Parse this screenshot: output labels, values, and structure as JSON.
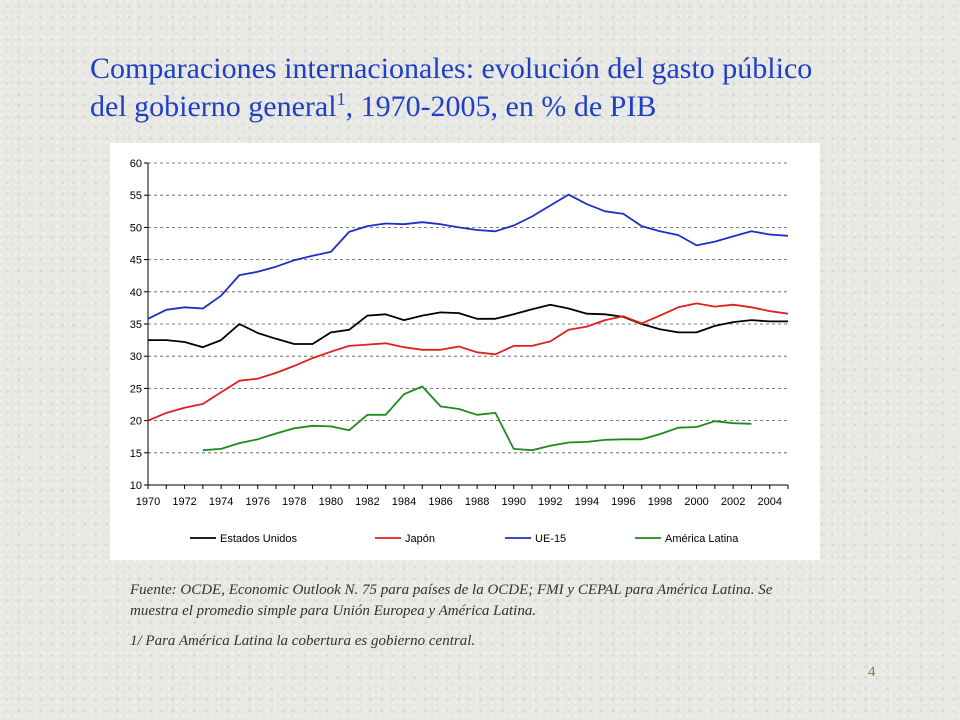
{
  "title": {
    "line1": "Comparaciones internacionales: evolución del gasto público",
    "line2_pre": "del gobierno general",
    "line2_sup": "1",
    "line2_post": ", 1970-2005, en % de PIB"
  },
  "notes": {
    "source": "Fuente: OCDE, Economic Outlook N. 75 para países de la OCDE; FMI y CEPAL para América Latina. Se muestra el promedio simple para Unión Europea y América Latina.",
    "footnote": "1/ Para América Latina la cobertura es gobierno central."
  },
  "page_number": "4",
  "chart_data": {
    "type": "line",
    "title": "",
    "xlabel": "",
    "ylabel": "",
    "xlim": [
      1970,
      2005
    ],
    "ylim": [
      10,
      60
    ],
    "y_ticks": [
      10,
      15,
      20,
      25,
      30,
      35,
      40,
      45,
      50,
      55,
      60
    ],
    "x_ticks": [
      1970,
      1972,
      1974,
      1976,
      1978,
      1980,
      1982,
      1984,
      1986,
      1988,
      1990,
      1992,
      1994,
      1996,
      1998,
      2000,
      2002,
      2004
    ],
    "grid": "horizontal dashed",
    "legend_position": "bottom",
    "series": [
      {
        "name": "Estados Unidos",
        "color": "#000000",
        "x": [
          1970,
          1971,
          1972,
          1973,
          1974,
          1975,
          1976,
          1977,
          1978,
          1979,
          1980,
          1981,
          1982,
          1983,
          1984,
          1985,
          1986,
          1987,
          1988,
          1989,
          1990,
          1991,
          1992,
          1993,
          1994,
          1995,
          1996,
          1997,
          1998,
          1999,
          2000,
          2001,
          2002,
          2003,
          2004,
          2005
        ],
        "values": [
          32.5,
          32.5,
          32.2,
          31.4,
          32.5,
          35.0,
          33.6,
          32.7,
          31.9,
          31.9,
          33.7,
          34.1,
          36.3,
          36.5,
          35.6,
          36.3,
          36.8,
          36.7,
          35.8,
          35.8,
          36.5,
          37.3,
          38.0,
          37.4,
          36.6,
          36.5,
          36.1,
          35.0,
          34.2,
          33.7,
          33.7,
          34.7,
          35.3,
          35.6,
          35.4,
          35.4
        ]
      },
      {
        "name": "Japón",
        "color": "#e0201c",
        "x": [
          1970,
          1971,
          1972,
          1973,
          1974,
          1975,
          1976,
          1977,
          1978,
          1979,
          1980,
          1981,
          1982,
          1983,
          1984,
          1985,
          1986,
          1987,
          1988,
          1989,
          1990,
          1991,
          1992,
          1993,
          1994,
          1995,
          1996,
          1997,
          1998,
          1999,
          2000,
          2001,
          2002,
          2003,
          2004,
          2005
        ],
        "values": [
          20.0,
          21.2,
          22.0,
          22.6,
          24.4,
          26.2,
          26.5,
          27.4,
          28.5,
          29.7,
          30.7,
          31.6,
          31.8,
          32.0,
          31.4,
          31.0,
          31.0,
          31.5,
          30.6,
          30.3,
          31.6,
          31.6,
          32.3,
          34.1,
          34.6,
          35.6,
          36.2,
          35.1,
          36.3,
          37.6,
          38.2,
          37.7,
          38.0,
          37.6,
          37.0,
          36.6
        ]
      },
      {
        "name": "UE-15",
        "color": "#1c2fc8",
        "x": [
          1970,
          1971,
          1972,
          1973,
          1974,
          1975,
          1976,
          1977,
          1978,
          1979,
          1980,
          1981,
          1982,
          1983,
          1984,
          1985,
          1986,
          1987,
          1988,
          1989,
          1990,
          1991,
          1992,
          1993,
          1994,
          1995,
          1996,
          1997,
          1998,
          1999,
          2000,
          2001,
          2002,
          2003,
          2004,
          2005
        ],
        "values": [
          35.8,
          37.2,
          37.6,
          37.4,
          39.4,
          42.6,
          43.1,
          43.9,
          44.9,
          45.6,
          46.2,
          49.3,
          50.2,
          50.6,
          50.5,
          50.8,
          50.5,
          50.0,
          49.6,
          49.4,
          50.3,
          51.7,
          53.4,
          55.1,
          53.6,
          52.5,
          52.1,
          50.2,
          49.4,
          48.8,
          47.2,
          47.8,
          48.6,
          49.4,
          48.9,
          48.7
        ]
      },
      {
        "name": "América Latina",
        "color": "#1e8a1e",
        "x": [
          1973,
          1974,
          1975,
          1976,
          1977,
          1978,
          1979,
          1980,
          1981,
          1982,
          1983,
          1984,
          1985,
          1986,
          1987,
          1988,
          1989,
          1990,
          1991,
          1992,
          1993,
          1994,
          1995,
          1996,
          1997,
          1998,
          1999,
          2000,
          2001,
          2002,
          2003
        ],
        "values": [
          15.4,
          15.6,
          16.5,
          17.1,
          18.0,
          18.8,
          19.2,
          19.1,
          18.5,
          20.9,
          20.9,
          24.1,
          25.3,
          22.2,
          21.8,
          20.9,
          21.2,
          15.6,
          15.4,
          16.1,
          16.6,
          16.7,
          17.0,
          17.1,
          17.1,
          17.9,
          18.9,
          19.0,
          19.9,
          19.6,
          19.5
        ]
      }
    ]
  }
}
